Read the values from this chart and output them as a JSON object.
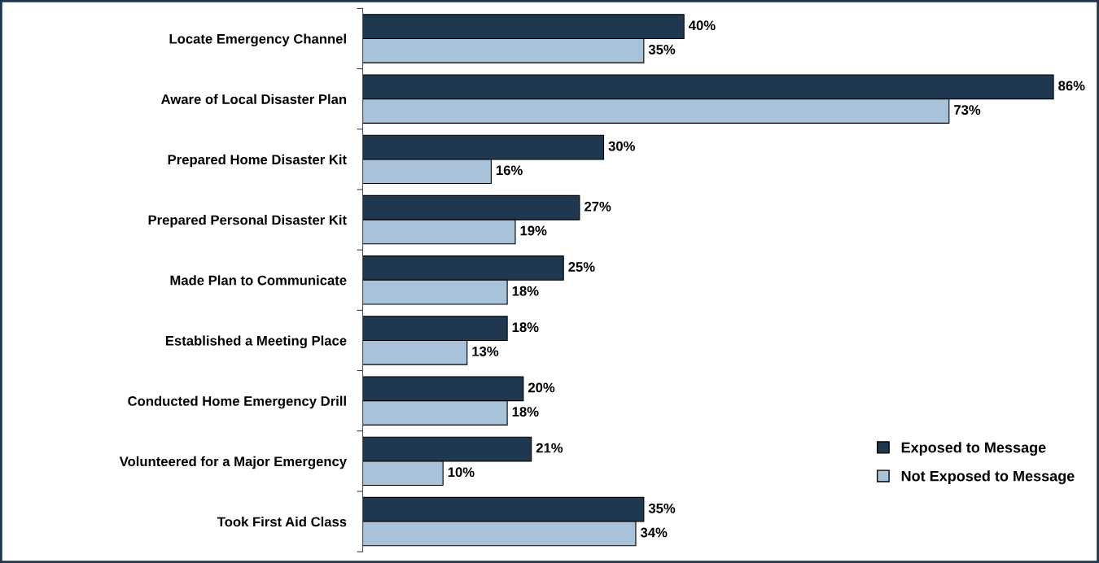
{
  "chart_data": {
    "type": "bar",
    "orientation": "horizontal",
    "categories": [
      "Locate Emergency Channel",
      "Aware of Local Disaster Plan",
      "Prepared Home Disaster Kit",
      "Prepared Personal Disaster Kit",
      "Made Plan to Communicate",
      "Established a Meeting Place",
      "Conducted Home Emergency Drill",
      "Volunteered for a Major Emergency",
      "Took First Aid Class"
    ],
    "series": [
      {
        "name": "Exposed to Message",
        "color": "#1f3850",
        "values": [
          40,
          86,
          30,
          27,
          25,
          18,
          20,
          21,
          35
        ],
        "value_labels": [
          "40%",
          "86%",
          "30%",
          "27%",
          "25%",
          "18%",
          "20%",
          "21%",
          "35%"
        ]
      },
      {
        "name": "Not Exposed to Message",
        "color": "#a8c2da",
        "values": [
          35,
          73,
          16,
          19,
          18,
          13,
          18,
          10,
          34
        ],
        "value_labels": [
          "35%",
          "73%",
          "16%",
          "19%",
          "18%",
          "13%",
          "18%",
          "10%",
          "34%"
        ]
      }
    ],
    "legend": "lower right",
    "grid": false
  }
}
